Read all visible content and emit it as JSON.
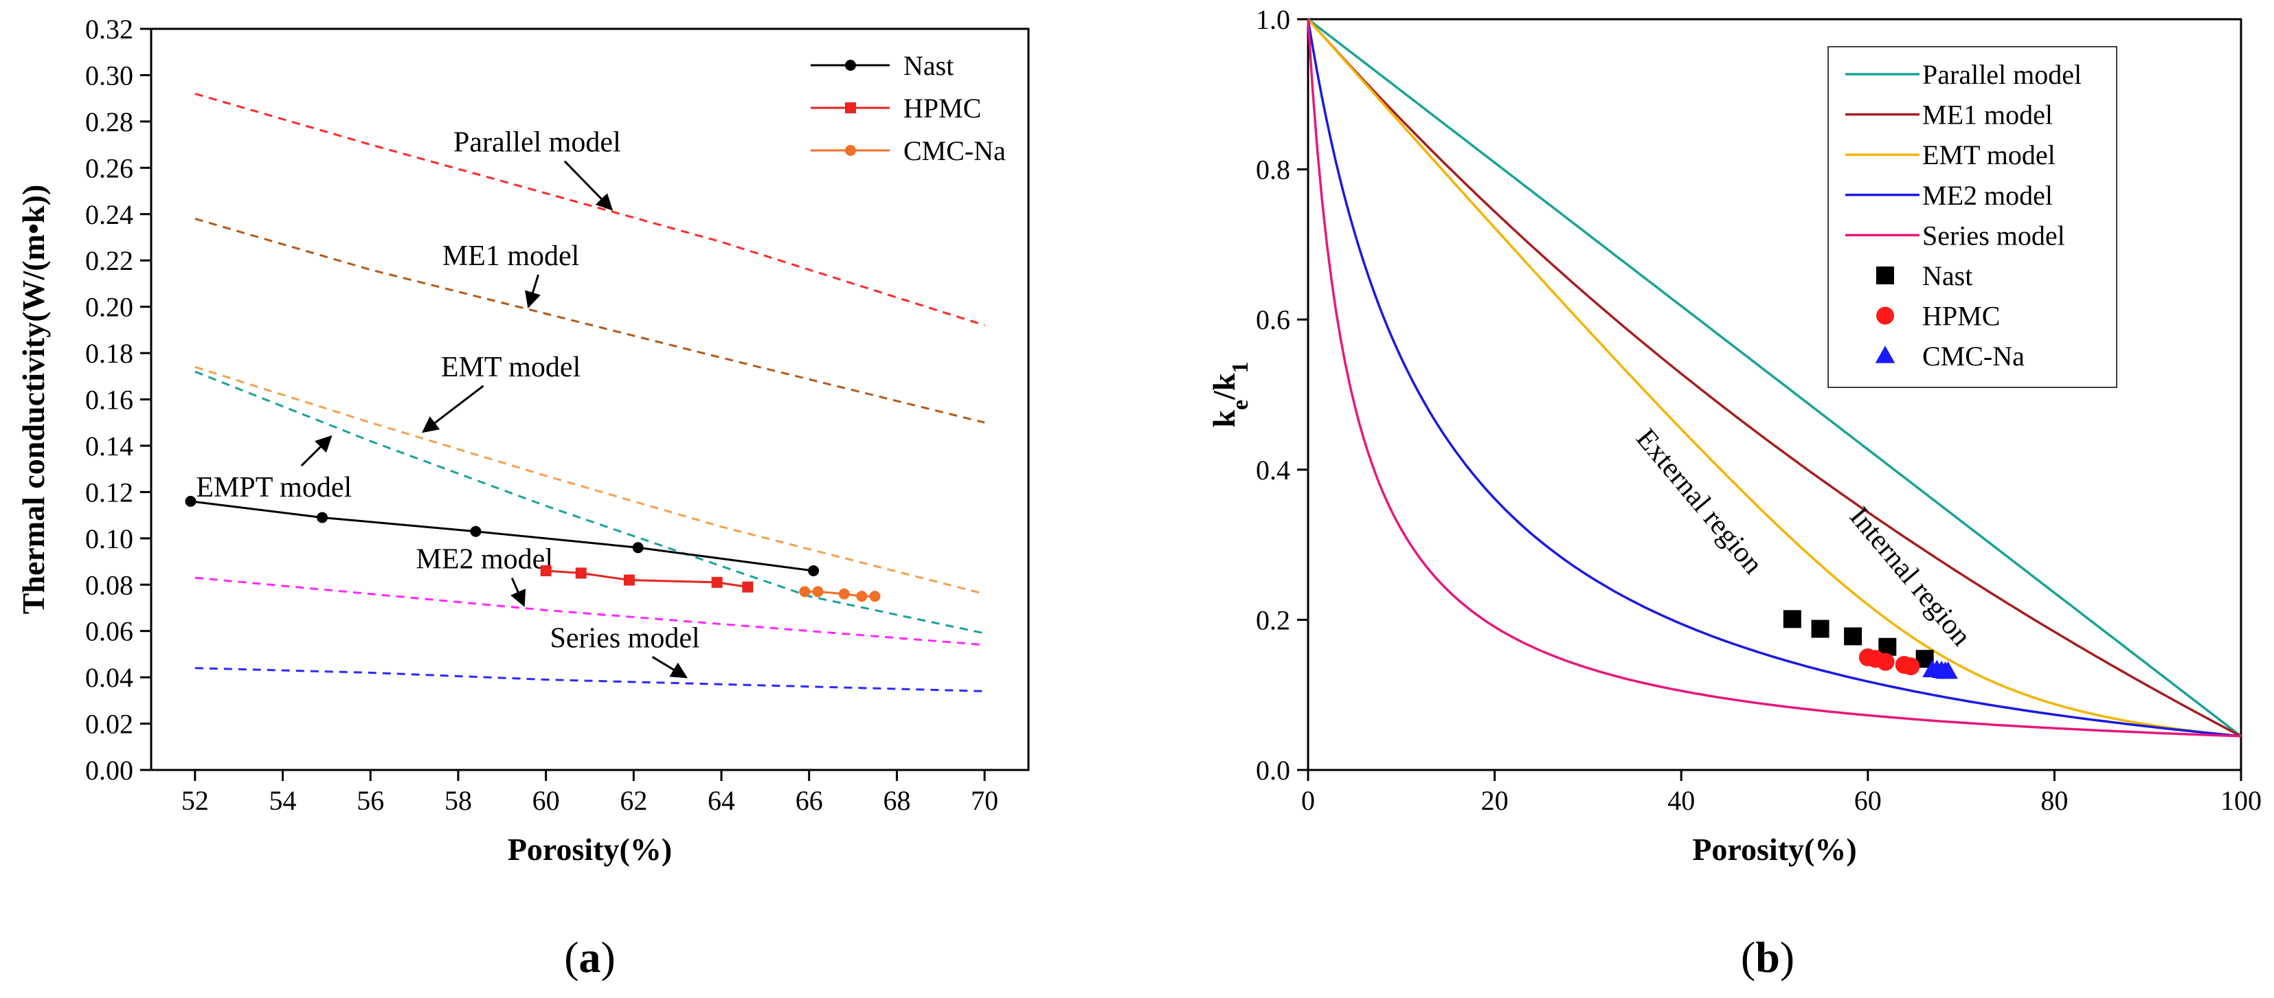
{
  "chart_data": [
    {
      "type": "line",
      "panel_label": "a",
      "xlabel": "Porosity(%)",
      "ylabel": "Thermal conductivity(W/(m•k))",
      "xlim": [
        51,
        71
      ],
      "ylim": [
        0,
        0.32
      ],
      "xticks": [
        52,
        54,
        56,
        58,
        60,
        62,
        64,
        66,
        68,
        70
      ],
      "yticks": [
        0,
        0.02,
        0.04,
        0.06,
        0.08,
        0.1,
        0.12,
        0.14,
        0.16,
        0.18,
        0.2,
        0.22,
        0.24,
        0.26,
        0.28,
        0.3,
        0.32
      ],
      "legend_position": "top-right",
      "series": [
        {
          "name": "Nast",
          "style": "solid",
          "marker": "circle",
          "color": "#000000",
          "x": [
            51.9,
            54.9,
            58.4,
            62.1,
            66.1
          ],
          "y": [
            0.116,
            0.109,
            0.103,
            0.096,
            0.086
          ]
        },
        {
          "name": "HPMC",
          "style": "solid",
          "marker": "square",
          "color": "#e8251f",
          "x": [
            60.0,
            60.8,
            61.9,
            63.9,
            64.6
          ],
          "y": [
            0.086,
            0.085,
            0.082,
            0.081,
            0.079
          ]
        },
        {
          "name": "CMC-Na",
          "style": "solid",
          "marker": "circle",
          "color": "#f07028",
          "x": [
            65.9,
            66.2,
            66.8,
            67.2,
            67.5
          ],
          "y": [
            0.077,
            0.077,
            0.076,
            0.075,
            0.075
          ]
        }
      ],
      "model_curves": [
        {
          "label": "Parallel model",
          "color": "#ff2a2a",
          "x": [
            52,
            56,
            60,
            64,
            70
          ],
          "y": [
            0.292,
            0.27,
            0.249,
            0.228,
            0.192
          ]
        },
        {
          "label": "ME1 model",
          "color": "#b25a1a",
          "x": [
            52,
            56,
            60,
            64,
            70
          ],
          "y": [
            0.238,
            0.216,
            0.197,
            0.178,
            0.15
          ]
        },
        {
          "label": "EMT model",
          "color": "#f4a050",
          "x": [
            52,
            56,
            60,
            64,
            70
          ],
          "y": [
            0.174,
            0.15,
            0.127,
            0.105,
            0.076
          ]
        },
        {
          "label": "EMPT model",
          "color": "#18a39a",
          "x": [
            52,
            56,
            60,
            64,
            66,
            70
          ],
          "y": [
            0.172,
            0.142,
            0.114,
            0.088,
            0.075,
            0.059
          ]
        },
        {
          "label": "ME2 model",
          "color": "#ff28ff",
          "x": [
            52,
            56,
            60,
            64,
            70
          ],
          "y": [
            0.083,
            0.076,
            0.069,
            0.063,
            0.054
          ]
        },
        {
          "label": "Series model",
          "color": "#2a2aff",
          "x": [
            52,
            56,
            60,
            64,
            70
          ],
          "y": [
            0.044,
            0.042,
            0.039,
            0.037,
            0.034
          ]
        }
      ],
      "annotations": [
        {
          "text": "Parallel model",
          "x": 59.8,
          "y": 0.267,
          "arrow_to": [
            61.5,
            0.242
          ]
        },
        {
          "text": "ME1 model",
          "x": 59.2,
          "y": 0.218,
          "arrow_to": [
            59.6,
            0.2
          ]
        },
        {
          "text": "EMT model",
          "x": 59.2,
          "y": 0.17,
          "arrow_to": [
            57.2,
            0.146
          ]
        },
        {
          "text": "EMPT model",
          "x": 53.8,
          "y": 0.118,
          "arrow_to": [
            55.1,
            0.144
          ]
        },
        {
          "text": "ME2 model",
          "x": 58.6,
          "y": 0.087,
          "arrow_to": [
            59.5,
            0.071
          ]
        },
        {
          "text": "Series model",
          "x": 61.8,
          "y": 0.053,
          "arrow_to": [
            63.2,
            0.04
          ]
        }
      ]
    },
    {
      "type": "line",
      "panel_label": "b",
      "xlabel": "Porosity(%)",
      "ylabel_main": "k",
      "ylabel_sub1": "e",
      "ylabel_mid": "/k",
      "ylabel_sub2": "1",
      "xlim": [
        0,
        100
      ],
      "ylim": [
        0,
        1.0
      ],
      "xticks": [
        0,
        20,
        40,
        60,
        80,
        100
      ],
      "yticks": [
        0.0,
        0.2,
        0.4,
        0.6,
        0.8,
        1.0
      ],
      "legend_position": "top-right",
      "ratio_kd_over_kc": 0.045,
      "series": [
        {
          "name": "Parallel model",
          "style": "solid",
          "color": "#17a39a",
          "model": "parallel"
        },
        {
          "name": "ME1 model",
          "style": "solid",
          "color": "#a51f1f",
          "model": "me1"
        },
        {
          "name": "EMT model",
          "style": "solid",
          "color": "#f4b400",
          "model": "emt"
        },
        {
          "name": "ME2 model",
          "style": "solid",
          "color": "#1a1adf",
          "model": "me2"
        },
        {
          "name": "Series model",
          "style": "solid",
          "color": "#e6187e",
          "model": "series"
        },
        {
          "name": "Nast",
          "style": "scatter",
          "marker": "square",
          "color": "#000000",
          "x": [
            51.9,
            54.9,
            58.4,
            62.1,
            66.1
          ],
          "y": [
            0.201,
            0.188,
            0.178,
            0.164,
            0.148
          ]
        },
        {
          "name": "HPMC",
          "style": "scatter",
          "marker": "circle",
          "color": "#ff1a1a",
          "x": [
            60.0,
            60.8,
            61.9,
            63.9,
            64.6
          ],
          "y": [
            0.15,
            0.148,
            0.144,
            0.14,
            0.138
          ]
        },
        {
          "name": "CMC-Na",
          "style": "scatter",
          "marker": "triangle",
          "color": "#1a1aff",
          "x": [
            66.9,
            67.4,
            67.9,
            68.3,
            68.6
          ],
          "y": [
            0.133,
            0.133,
            0.132,
            0.131,
            0.131
          ]
        }
      ],
      "annotations": [
        {
          "text": "External region",
          "x": 41.2,
          "y": 0.35,
          "rotation_deg": 50
        },
        {
          "text": "Internal region",
          "x": 63.8,
          "y": 0.25,
          "rotation_deg": 50
        }
      ]
    }
  ]
}
